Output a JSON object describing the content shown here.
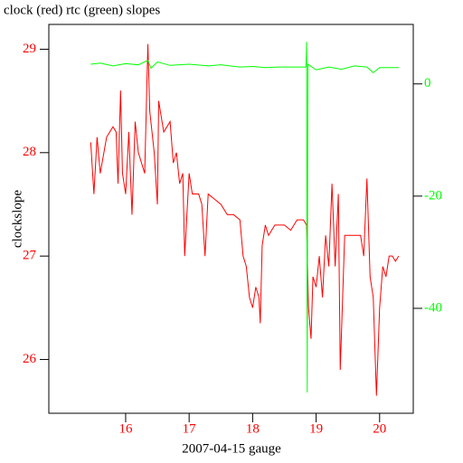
{
  "chart_data": {
    "type": "line",
    "title": "clock (red) rtc (green) slopes",
    "xlabel": "2007-04-15 gauge",
    "ylabel": "clockslope",
    "xlim": [
      14.79,
      20.53
    ],
    "xticks": [
      16,
      17,
      18,
      19,
      20
    ],
    "ylim": [
      25.48,
      29.24
    ],
    "yticks": [
      26,
      27,
      28,
      29
    ],
    "y2lim": [
      -58.7,
      10.6
    ],
    "y2ticks": [
      -40,
      -20,
      0
    ],
    "xtick_color": "#ff0000",
    "ytick_color": "#ff0000",
    "y2tick_color": "#00ff00",
    "series": [
      {
        "color": "#ff0000",
        "x": [
          15.45,
          15.5,
          15.55,
          15.6,
          15.7,
          15.8,
          15.85,
          15.88,
          15.92,
          15.95,
          16.0,
          16.05,
          16.1,
          16.15,
          16.2,
          16.3,
          16.32,
          16.35,
          16.38,
          16.45,
          16.5,
          16.52,
          16.6,
          16.7,
          16.75,
          16.8,
          16.85,
          16.9,
          16.93,
          17.0,
          17.05,
          17.15,
          17.2,
          17.25,
          17.3,
          17.4,
          17.5,
          17.6,
          17.7,
          17.8,
          17.85,
          17.9,
          17.95,
          18.0,
          18.05,
          18.1,
          18.12,
          18.15,
          18.2,
          18.25,
          18.35,
          18.5,
          18.6,
          18.7,
          18.8,
          18.85,
          18.88,
          18.92,
          18.95,
          19.0,
          19.05,
          19.1,
          19.15,
          19.2,
          19.25,
          19.3,
          19.35,
          19.38,
          19.45,
          19.55,
          19.65,
          19.7,
          19.75,
          19.8,
          19.85,
          19.9,
          19.95,
          20.0,
          20.05,
          20.1,
          20.15,
          20.2,
          20.25,
          20.3
        ],
        "values": [
          28.1,
          27.6,
          28.15,
          27.8,
          28.15,
          28.25,
          28.2,
          27.7,
          28.6,
          27.8,
          27.6,
          28.2,
          27.4,
          28.3,
          28.0,
          27.8,
          28.3,
          29.05,
          28.4,
          28.0,
          27.5,
          28.5,
          28.2,
          28.3,
          27.9,
          28.0,
          27.7,
          27.8,
          27.0,
          27.8,
          27.6,
          27.6,
          27.5,
          27.0,
          27.6,
          27.55,
          27.5,
          27.4,
          27.4,
          27.35,
          27.0,
          26.9,
          26.6,
          26.5,
          26.7,
          26.6,
          26.35,
          27.1,
          27.3,
          27.2,
          27.3,
          27.3,
          27.25,
          27.35,
          27.35,
          27.3,
          26.5,
          26.2,
          26.8,
          26.7,
          27.0,
          26.6,
          27.2,
          26.9,
          27.7,
          26.9,
          27.6,
          25.9,
          27.2,
          27.2,
          27.2,
          27.2,
          27.0,
          27.75,
          26.8,
          26.6,
          25.65,
          26.5,
          26.9,
          26.8,
          27.0,
          27.0,
          26.95,
          27.0
        ]
      },
      {
        "color": "#00ff00",
        "axis": "y2",
        "x": [
          15.45,
          15.6,
          15.8,
          16.0,
          16.2,
          16.35,
          16.4,
          16.5,
          16.7,
          17.0,
          17.3,
          17.5,
          17.8,
          18.0,
          18.2,
          18.4,
          18.6,
          18.84,
          18.85,
          18.86,
          18.87,
          19.0,
          19.2,
          19.4,
          19.6,
          19.8,
          19.9,
          20.0,
          20.2,
          20.3
        ],
        "values": [
          3.5,
          3.7,
          3.2,
          3.6,
          3.4,
          4.2,
          2.8,
          3.9,
          3.3,
          3.5,
          3.2,
          3.4,
          3.0,
          3.1,
          2.9,
          3.0,
          3.0,
          3.0,
          7.5,
          -55,
          3.5,
          2.5,
          3.0,
          2.6,
          3.2,
          3.0,
          2.0,
          2.9,
          2.9,
          2.9
        ]
      }
    ]
  }
}
